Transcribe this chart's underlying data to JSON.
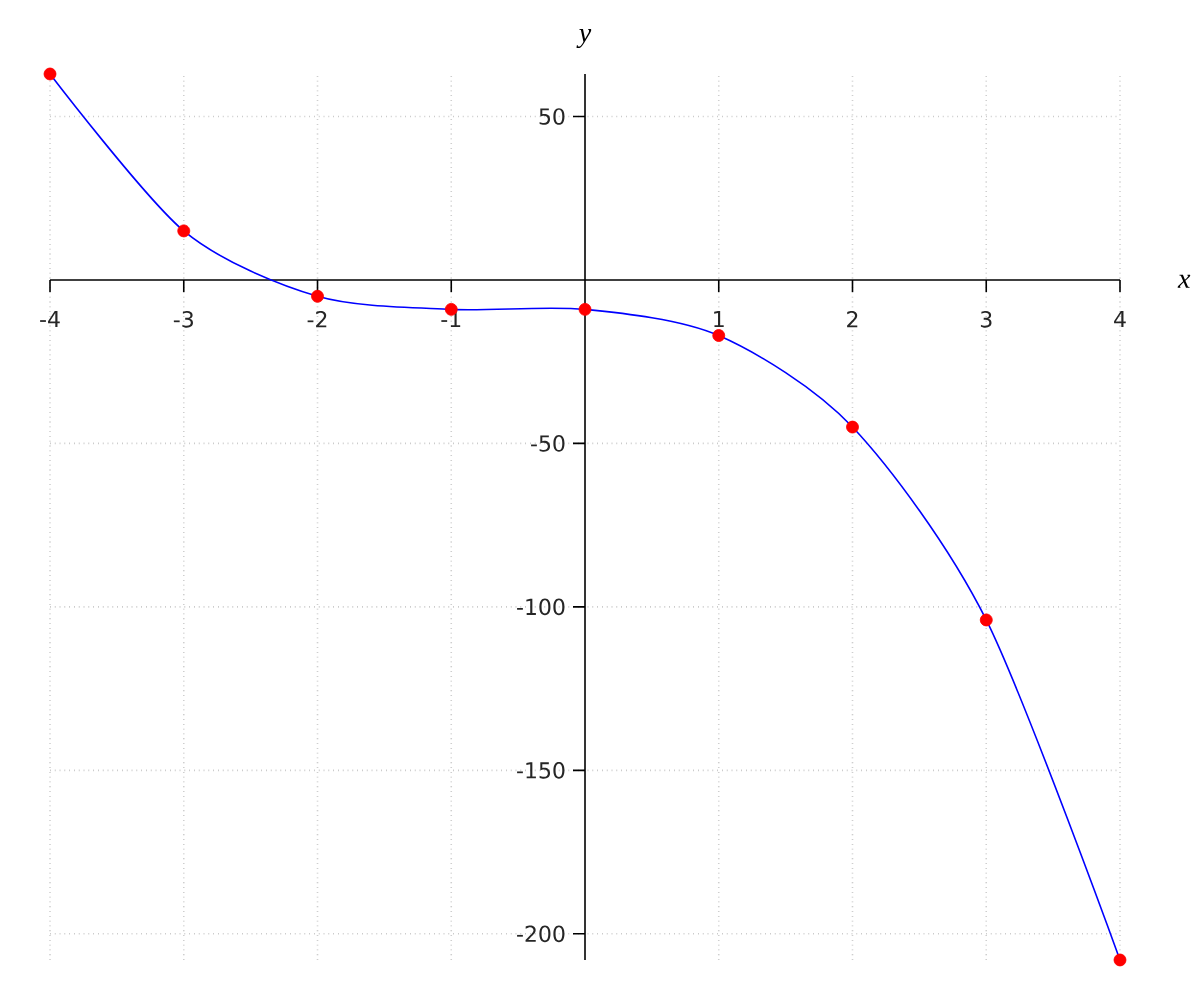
{
  "chart_data": {
    "type": "line",
    "xlabel": "x",
    "ylabel": "y",
    "x": [
      -4,
      -3,
      -2,
      -1,
      0,
      1,
      2,
      3,
      4
    ],
    "series": [
      {
        "color": "#0000ff",
        "marker": "none",
        "values": [
          63,
          15,
          -5,
          -9,
          -9,
          -17,
          -45,
          -104,
          -208
        ]
      },
      {
        "type": "scatter",
        "color": "#ff0000",
        "marker": "circle",
        "values": [
          63,
          15,
          -5,
          -9,
          -9,
          -17,
          -45,
          -104,
          -208
        ]
      }
    ],
    "xlim": [
      -4,
      4
    ],
    "ylim": [
      -208,
      63
    ],
    "xticks": [
      -4,
      -3,
      -2,
      -1,
      1,
      2,
      3,
      4
    ],
    "yticks": [
      -200,
      -150,
      -100,
      -50,
      50
    ],
    "grid": true
  }
}
